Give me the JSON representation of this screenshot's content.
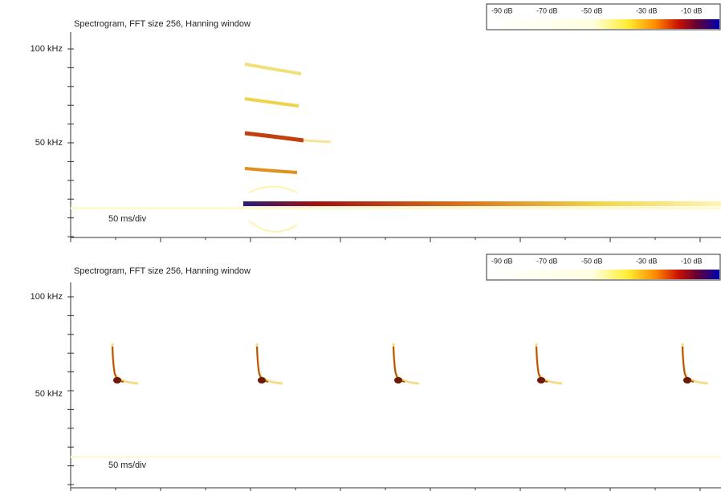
{
  "panels": [
    {
      "title": "Spectrogram, FFT size 256, Hanning window",
      "y_labels": [
        "100 kHz",
        "50 kHz"
      ],
      "time_scale": "50 ms/div",
      "colorbar_labels": [
        "-90 dB",
        "-70 dB",
        "-50 dB",
        "-30 dB",
        "-10 dB"
      ]
    },
    {
      "title": "Spectrogram, FFT size 256, Hanning window",
      "y_labels": [
        "100 kHz",
        "50 kHz"
      ],
      "time_scale": "50 ms/div",
      "colorbar_labels": [
        "-90 dB",
        "-70 dB",
        "-50 dB",
        "-30 dB",
        "-10 dB"
      ]
    }
  ]
}
